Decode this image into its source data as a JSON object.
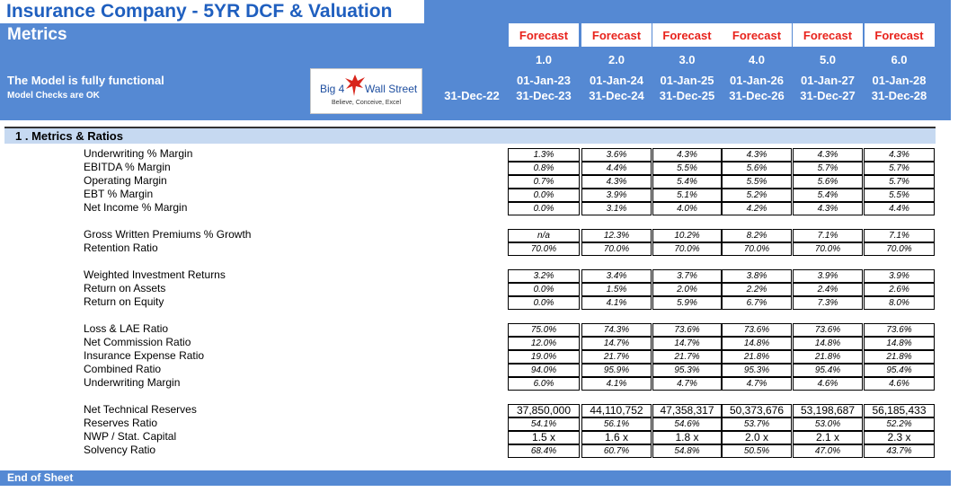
{
  "header": {
    "title": "Insurance Company - 5YR DCF & Valuation",
    "sheet_name": "Metrics",
    "status_line1": "The Model is fully functional",
    "status_line2": "Model Checks are OK",
    "logo": {
      "left_text": "Big 4",
      "right_text": "Wall Street",
      "tagline": "Believe, Conceive, Excel"
    },
    "base_date": "31-Dec-22",
    "columns": [
      {
        "label": "Forecast",
        "period": "1.0",
        "start": "01-Jan-23",
        "end": "31-Dec-23"
      },
      {
        "label": "Forecast",
        "period": "2.0",
        "start": "01-Jan-24",
        "end": "31-Dec-24"
      },
      {
        "label": "Forecast",
        "period": "3.0",
        "start": "01-Jan-25",
        "end": "31-Dec-25"
      },
      {
        "label": "Forecast",
        "period": "4.0",
        "start": "01-Jan-26",
        "end": "31-Dec-26"
      },
      {
        "label": "Forecast",
        "period": "5.0",
        "start": "01-Jan-27",
        "end": "31-Dec-27"
      },
      {
        "label": "Forecast",
        "period": "6.0",
        "start": "01-Jan-28",
        "end": "31-Dec-28"
      }
    ]
  },
  "section": {
    "title": "1 . Metrics & Ratios"
  },
  "rows": [
    {
      "label": "Underwriting % Margin",
      "values": [
        "1.3%",
        "3.6%",
        "4.3%",
        "4.3%",
        "4.3%",
        "4.3%"
      ]
    },
    {
      "label": "EBITDA % Margin",
      "values": [
        "0.8%",
        "4.4%",
        "5.5%",
        "5.6%",
        "5.7%",
        "5.7%"
      ]
    },
    {
      "label": "Operating Margin",
      "values": [
        "0.7%",
        "4.3%",
        "5.4%",
        "5.5%",
        "5.6%",
        "5.7%"
      ]
    },
    {
      "label": "EBT % Margin",
      "values": [
        "0.0%",
        "3.9%",
        "5.1%",
        "5.2%",
        "5.4%",
        "5.5%"
      ]
    },
    {
      "label": "Net Income % Margin",
      "values": [
        "0.0%",
        "3.1%",
        "4.0%",
        "4.2%",
        "4.3%",
        "4.4%"
      ]
    },
    {
      "label": "Gross Written Premiums % Growth",
      "values": [
        "n/a",
        "12.3%",
        "10.2%",
        "8.2%",
        "7.1%",
        "7.1%"
      ]
    },
    {
      "label": "Retention Ratio",
      "values": [
        "70.0%",
        "70.0%",
        "70.0%",
        "70.0%",
        "70.0%",
        "70.0%"
      ]
    },
    {
      "label": "Weighted Investment Returns",
      "values": [
        "3.2%",
        "3.4%",
        "3.7%",
        "3.8%",
        "3.9%",
        "3.9%"
      ]
    },
    {
      "label": "Return on Assets",
      "values": [
        "0.0%",
        "1.5%",
        "2.0%",
        "2.2%",
        "2.4%",
        "2.6%"
      ]
    },
    {
      "label": "Return on Equity",
      "values": [
        "0.0%",
        "4.1%",
        "5.9%",
        "6.7%",
        "7.3%",
        "8.0%"
      ]
    },
    {
      "label": "Loss & LAE Ratio",
      "values": [
        "75.0%",
        "74.3%",
        "73.6%",
        "73.6%",
        "73.6%",
        "73.6%"
      ]
    },
    {
      "label": "Net Commission Ratio",
      "values": [
        "12.0%",
        "14.7%",
        "14.7%",
        "14.8%",
        "14.8%",
        "14.8%"
      ]
    },
    {
      "label": "Insurance Expense Ratio",
      "values": [
        "19.0%",
        "21.7%",
        "21.7%",
        "21.8%",
        "21.8%",
        "21.8%"
      ]
    },
    {
      "label": "Combined Ratio",
      "values": [
        "94.0%",
        "95.9%",
        "95.3%",
        "95.3%",
        "95.4%",
        "95.4%"
      ]
    },
    {
      "label": "Underwriting Margin",
      "values": [
        "6.0%",
        "4.1%",
        "4.7%",
        "4.7%",
        "4.6%",
        "4.6%"
      ]
    },
    {
      "label": "Net Technical Reserves",
      "values": [
        "37,850,000",
        "44,110,752",
        "47,358,317",
        "50,373,676",
        "53,198,687",
        "56,185,433"
      ]
    },
    {
      "label": "Reserves Ratio",
      "values": [
        "54.1%",
        "56.1%",
        "54.6%",
        "53.7%",
        "53.0%",
        "52.2%"
      ]
    },
    {
      "label": "NWP / Stat. Capital",
      "values": [
        "1.5 x",
        "1.6 x",
        "1.8 x",
        "2.0 x",
        "2.1 x",
        "2.3 x"
      ]
    },
    {
      "label": "Solvency Ratio",
      "values": [
        "68.4%",
        "60.7%",
        "54.8%",
        "50.5%",
        "47.0%",
        "43.7%"
      ]
    }
  ],
  "footer": {
    "text": "End of Sheet"
  }
}
